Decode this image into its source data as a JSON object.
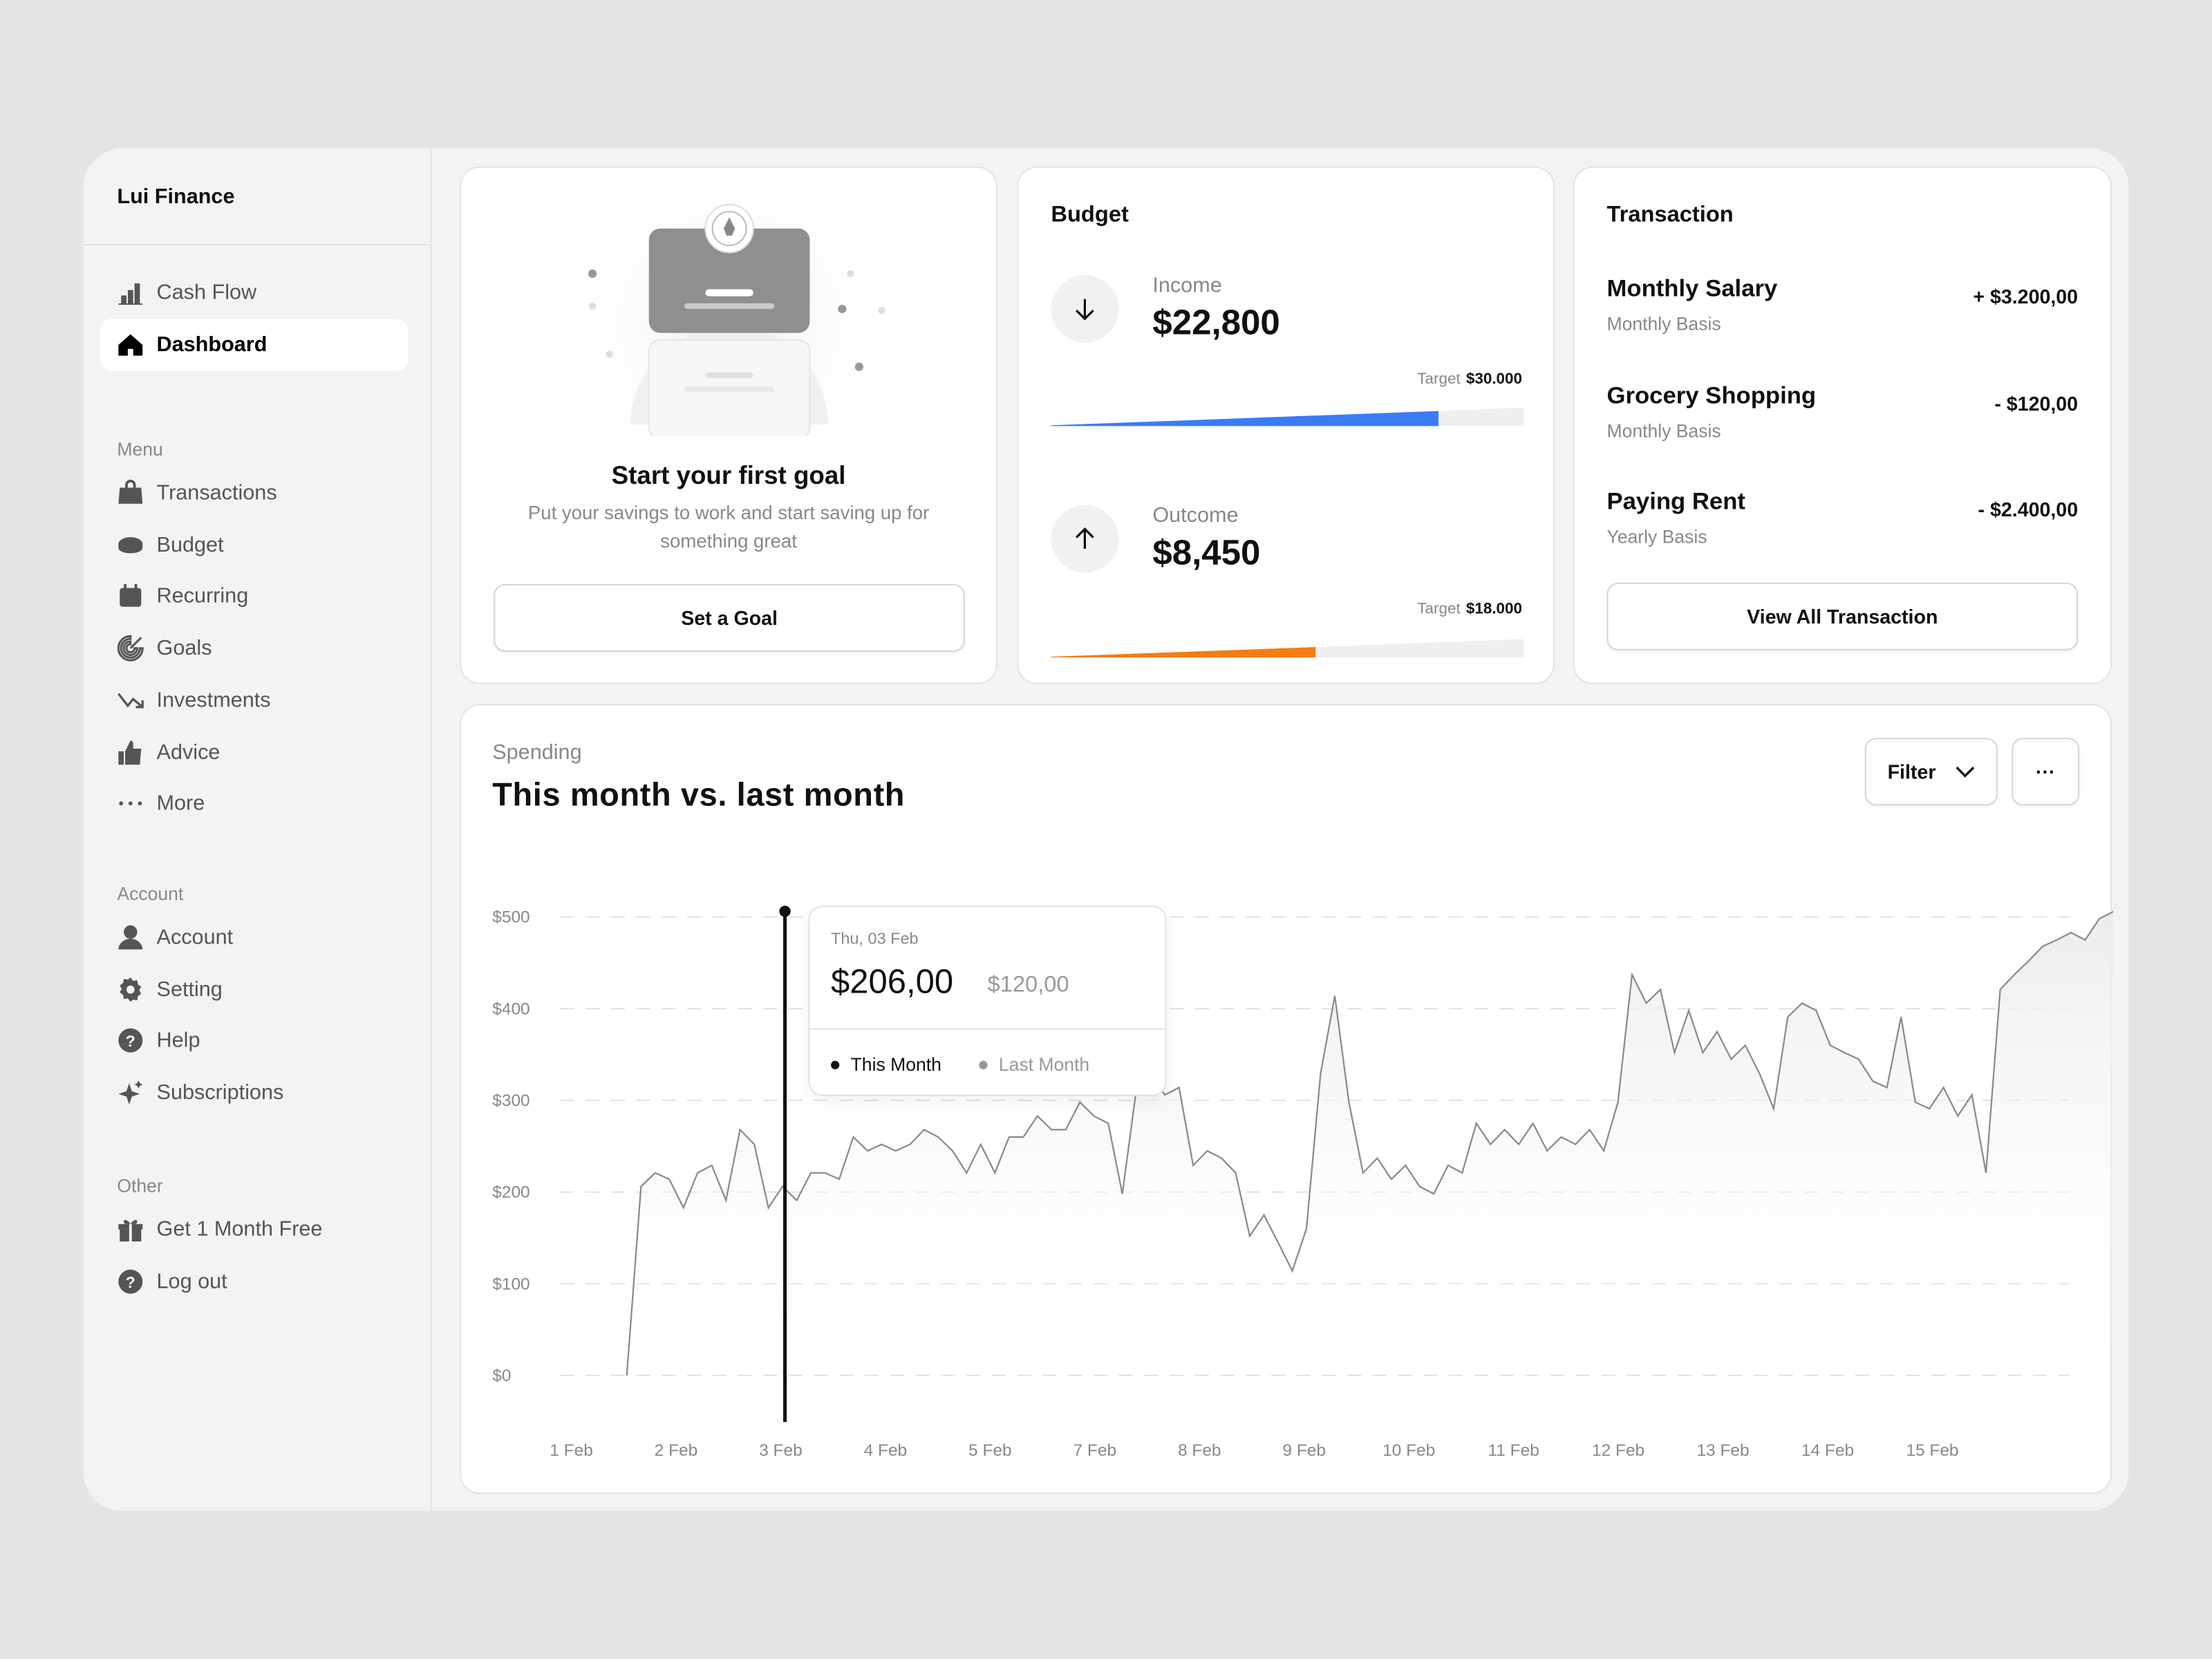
{
  "app": {
    "name": "Lui Finance"
  },
  "sidebar": {
    "top": [
      {
        "label": "Cash Flow",
        "icon": "chart-bar-icon"
      },
      {
        "label": "Dashboard",
        "icon": "home-icon",
        "active": true
      }
    ],
    "menu_title": "Menu",
    "menu": [
      {
        "label": "Transactions",
        "icon": "bag-icon"
      },
      {
        "label": "Budget",
        "icon": "coin-icon"
      },
      {
        "label": "Recurring",
        "icon": "calendar-icon"
      },
      {
        "label": "Goals",
        "icon": "target-icon"
      },
      {
        "label": "Investments",
        "icon": "trend-icon"
      },
      {
        "label": "Advice",
        "icon": "thumbs-up-icon"
      },
      {
        "label": "More",
        "icon": "more-icon"
      }
    ],
    "account_title": "Account",
    "account": [
      {
        "label": "Account",
        "icon": "user-icon"
      },
      {
        "label": "Setting",
        "icon": "gear-icon"
      },
      {
        "label": "Help",
        "icon": "help-icon"
      },
      {
        "label": "Subscriptions",
        "icon": "sparkle-icon"
      }
    ],
    "other_title": "Other",
    "other": [
      {
        "label": "Get 1 Month Free",
        "icon": "gift-icon"
      },
      {
        "label": "Log out",
        "icon": "logout-icon"
      }
    ]
  },
  "goal": {
    "title": "Start your first goal",
    "description": "Put your savings to work and start saving up for something great",
    "button": "Set a Goal"
  },
  "budget": {
    "title": "Budget",
    "income": {
      "label": "Income",
      "value": "$22,800",
      "target_label": "Target",
      "target": "$30.000",
      "progress": 0.82,
      "color": "#3b7cf6"
    },
    "outcome": {
      "label": "Outcome",
      "value": "$8,450",
      "target_label": "Target",
      "target": "$18.000",
      "progress": 0.56,
      "color": "#f57c13"
    }
  },
  "transactions": {
    "title": "Transaction",
    "items": [
      {
        "name": "Monthly Salary",
        "sub": "Monthly Basis",
        "amount": "+ $3.200,00"
      },
      {
        "name": "Grocery Shopping",
        "sub": "Monthly Basis",
        "amount": "- $120,00"
      },
      {
        "name": "Paying Rent",
        "sub": "Yearly Basis",
        "amount": "- $2.400,00"
      }
    ],
    "button": "View All Transaction"
  },
  "spending": {
    "label": "Spending",
    "title": "This month vs. last month",
    "filter": "Filter",
    "more": "···",
    "tooltip": {
      "date": "Thu, 03 Feb",
      "this_value": "$206,00",
      "last_value": "$120,00",
      "this_label": "This Month",
      "last_label": "Last Month"
    }
  },
  "chart_data": {
    "type": "line",
    "title": "This month vs. last month",
    "ylim": [
      0,
      500
    ],
    "y_ticks": [
      "$500",
      "$400",
      "$300",
      "$200",
      "$100",
      "$0"
    ],
    "y_tick_values": [
      500,
      400,
      300,
      200,
      100,
      0
    ],
    "x_ticks": [
      "1 Feb",
      "2 Feb",
      "3 Feb",
      "4 Feb",
      "5 Feb",
      "7 Feb",
      "8 Feb",
      "9 Feb",
      "10 Feb",
      "11 Feb",
      "12 Feb",
      "13 Feb",
      "14 Feb",
      "15 Feb"
    ],
    "x_range": [
      1.53,
      15.73
    ],
    "highlight": {
      "x": 3.0,
      "this_month": 206,
      "last_month": 120
    },
    "series": [
      {
        "name": "This Month",
        "values": [
          0,
          206,
          221,
          214,
          183,
          221,
          229,
          191,
          268,
          252,
          183,
          206,
          191,
          221,
          221,
          214,
          260,
          245,
          252,
          245,
          252,
          268,
          260,
          245,
          221,
          252,
          221,
          260,
          260,
          283,
          268,
          268,
          298,
          283,
          275,
          198,
          314,
          329,
          306,
          314,
          229,
          245,
          237,
          221,
          152,
          175,
          145,
          114,
          160,
          329,
          414,
          298,
          221,
          237,
          214,
          229,
          206,
          198,
          229,
          221,
          275,
          252,
          268,
          252,
          275,
          245,
          260,
          252,
          268,
          245,
          298,
          437,
          406,
          421,
          352,
          398,
          352,
          375,
          345,
          360,
          329,
          291,
          391,
          406,
          398,
          360,
          352,
          345,
          321,
          314,
          391,
          298,
          291,
          314,
          283,
          306,
          221,
          421,
          437,
          452,
          468,
          475,
          483,
          475,
          498,
          506
        ]
      }
    ]
  }
}
